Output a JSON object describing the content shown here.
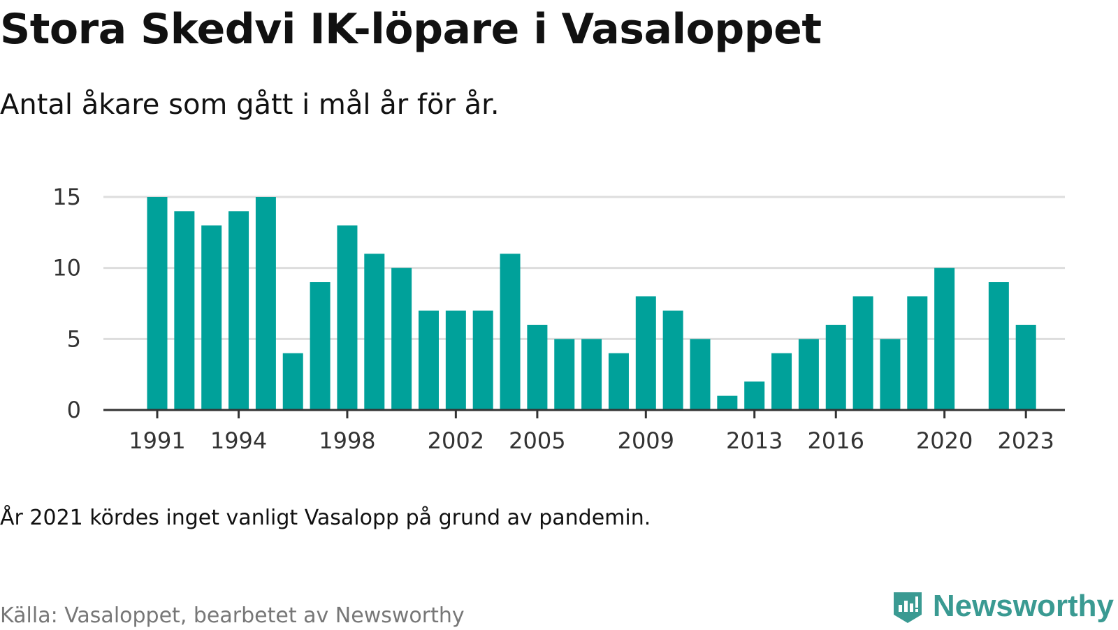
{
  "header": {
    "title": "Stora Skedvi IK-löpare i Vasaloppet",
    "subtitle": "Antal åkare som gått i mål år för år."
  },
  "footer": {
    "note": "År 2021 kördes inget vanligt Vasalopp på grund av pandemin.",
    "source": "Källa: Vasaloppet, bearbetet av Newsworthy",
    "brand": "Newsworthy"
  },
  "colors": {
    "bar": "#00a19a",
    "grid": "#dddddd",
    "axis": "#333333",
    "brand": "#3a9a92"
  },
  "icons": {
    "brand_logo": "newsworthy-logo-icon"
  },
  "chart_data": {
    "type": "bar",
    "title": "Stora Skedvi IK-löpare i Vasaloppet",
    "subtitle": "Antal åkare som gått i mål år för år.",
    "xlabel": "",
    "ylabel": "",
    "categories": [
      1991,
      1992,
      1993,
      1994,
      1995,
      1996,
      1997,
      1998,
      1999,
      2000,
      2001,
      2002,
      2003,
      2004,
      2005,
      2006,
      2007,
      2008,
      2009,
      2010,
      2011,
      2012,
      2013,
      2014,
      2015,
      2016,
      2017,
      2018,
      2019,
      2020,
      2021,
      2022,
      2023
    ],
    "values": [
      15,
      14,
      13,
      14,
      15,
      4,
      9,
      13,
      11,
      10,
      7,
      7,
      7,
      11,
      6,
      5,
      5,
      4,
      8,
      7,
      5,
      1,
      2,
      4,
      5,
      6,
      8,
      5,
      8,
      10,
      null,
      9,
      6
    ],
    "x_tick_labels": [
      "1991",
      "1994",
      "1998",
      "2002",
      "2005",
      "2009",
      "2013",
      "2016",
      "2020",
      "2023"
    ],
    "y_ticks": [
      0,
      5,
      10,
      15
    ],
    "ylim": [
      0,
      15
    ],
    "grid": true,
    "legend": "none"
  }
}
